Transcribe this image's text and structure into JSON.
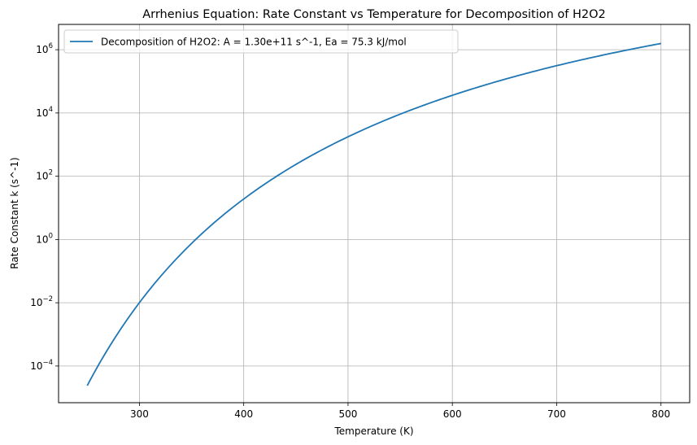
{
  "chart_data": {
    "type": "line",
    "title": "Arrhenius Equation: Rate Constant vs Temperature for Decomposition of H2O2",
    "xlabel": "Temperature (K)",
    "ylabel": "Rate Constant k (s^-1)",
    "xscale": "linear",
    "yscale": "log",
    "xlim": [
      222.5,
      827.5
    ],
    "ylim_log10": [
      -5.16,
      6.8
    ],
    "grid": true,
    "legend_position": "upper left",
    "x_ticks": [
      300,
      400,
      500,
      600,
      700,
      800
    ],
    "x_tick_labels": [
      "300",
      "400",
      "500",
      "600",
      "700",
      "800"
    ],
    "y_ticks_log10": [
      -4,
      -2,
      0,
      2,
      4,
      6
    ],
    "y_tick_labels": [
      "10^-4",
      "10^-2",
      "10^0",
      "10^2",
      "10^4",
      "10^6"
    ],
    "series": [
      {
        "name": "Decomposition of H2O2: A = 1.30e+11 s^-1, Ea = 75.3 kJ/mol",
        "color": "#1f77b4",
        "model": {
          "A": 130000000000.0,
          "Ea_J_per_mol": 75300,
          "R": 8.314,
          "T_min": 250,
          "T_max": 800
        },
        "x": [
          250,
          300,
          350,
          400,
          450,
          500,
          550,
          600,
          650,
          700,
          750,
          800
        ],
        "values": [
          2.4e-05,
          0.01,
          0.76,
          20.0,
          240.0,
          1900.0,
          9800.0,
          37000.0,
          110000.0,
          300000.0,
          700000.0,
          1600000.0
        ]
      }
    ]
  },
  "title": "Arrhenius Equation: Rate Constant vs Temperature for Decomposition of H2O2",
  "axes": {
    "xlabel": "Temperature (K)",
    "ylabel": "Rate Constant k (s^-1)",
    "x_ticks": [
      "300",
      "400",
      "500",
      "600",
      "700",
      "800"
    ],
    "y_ticks": [
      {
        "base": "10",
        "exp": "−4"
      },
      {
        "base": "10",
        "exp": "−2"
      },
      {
        "base": "10",
        "exp": "0"
      },
      {
        "base": "10",
        "exp": "2"
      },
      {
        "base": "10",
        "exp": "4"
      },
      {
        "base": "10",
        "exp": "6"
      }
    ]
  },
  "legend": {
    "label": "Decomposition of H2O2: A = 1.30e+11 s^-1, Ea = 75.3 kJ/mol"
  },
  "colors": {
    "line": "#1f77b4",
    "grid": "#b0b0b0",
    "axes": "#000000",
    "legend_border": "#cccccc"
  }
}
